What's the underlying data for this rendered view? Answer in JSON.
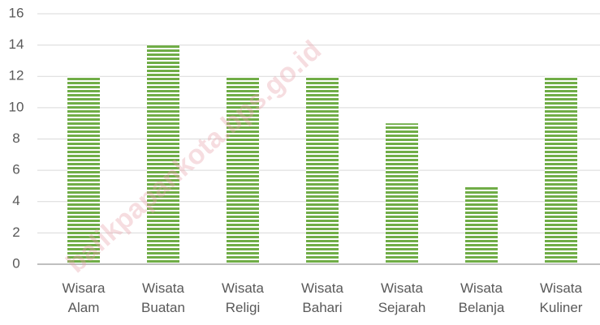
{
  "chart_data": {
    "type": "bar",
    "categories": [
      [
        "Wisara",
        "Alam"
      ],
      [
        "Wisata",
        "Buatan"
      ],
      [
        "Wisata",
        "Religi"
      ],
      [
        "Wisata",
        "Bahari"
      ],
      [
        "Wisata",
        "Sejarah"
      ],
      [
        "Wisata",
        "Belanja"
      ],
      [
        "Wisata",
        "Kuliner"
      ]
    ],
    "values": [
      12,
      14,
      12,
      12,
      9,
      5,
      12
    ],
    "color": "#70ad47",
    "ylim": [
      0,
      16
    ],
    "yticks": [
      0,
      2,
      4,
      6,
      8,
      10,
      12,
      14,
      16
    ],
    "grid": true,
    "watermark": "balikpapankota.bps.go.id"
  }
}
